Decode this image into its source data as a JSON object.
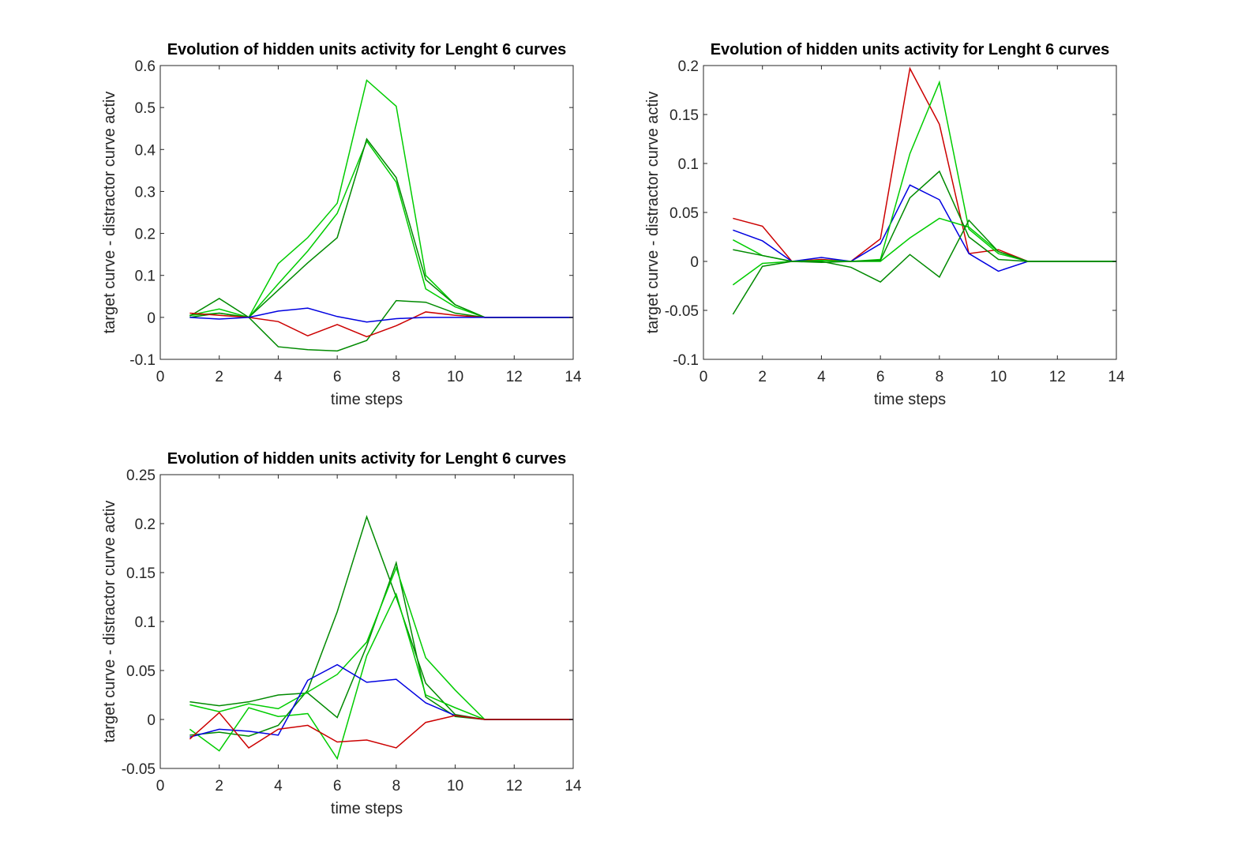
{
  "colors": {
    "red": "#cc0000",
    "blue": "#0000e0",
    "dark_green": "#008a00",
    "light_green": "#00cc00",
    "axis": "#262626"
  },
  "chart_data": [
    {
      "type": "line",
      "title": "Evolution of hidden units activity for Lenght 6 curves",
      "xlabel": "time steps",
      "ylabel": "target curve - distractor curve activ",
      "xlim": [
        0,
        14
      ],
      "ylim": [
        -0.1,
        0.6
      ],
      "xticks": [
        0,
        2,
        4,
        6,
        8,
        10,
        12,
        14
      ],
      "yticks": [
        -0.1,
        0,
        0.1,
        0.2,
        0.3,
        0.4,
        0.5,
        0.6
      ],
      "ytick_labels": [
        "-0.1",
        "0",
        "0.1",
        "0.2",
        "0.3",
        "0.4",
        "0.5",
        "0.6"
      ],
      "grid": false,
      "legend": "none",
      "x": [
        1,
        2,
        3,
        4,
        5,
        6,
        7,
        8,
        9,
        10,
        11,
        12,
        13,
        14
      ],
      "series": [
        {
          "color": "light_green",
          "values": [
            0.005,
            0.01,
            0,
            0.128,
            0.19,
            0.272,
            0.565,
            0.503,
            0.1,
            0.03,
            0,
            0,
            0,
            0
          ]
        },
        {
          "color": "light_green",
          "values": [
            0.005,
            0.02,
            0,
            0.08,
            0.158,
            0.248,
            0.42,
            0.322,
            0.068,
            0.025,
            0,
            0,
            0,
            0
          ]
        },
        {
          "color": "dark_green",
          "values": [
            0,
            0.01,
            0,
            0.065,
            0.13,
            0.19,
            0.425,
            0.333,
            0.09,
            0.03,
            0,
            0,
            0,
            0
          ]
        },
        {
          "color": "dark_green",
          "values": [
            0.003,
            0.045,
            0,
            -0.07,
            -0.077,
            -0.08,
            -0.055,
            0.04,
            0.036,
            0.01,
            0,
            0,
            0,
            0
          ]
        },
        {
          "color": "red",
          "values": [
            0.01,
            0.005,
            0,
            -0.01,
            -0.044,
            -0.017,
            -0.046,
            -0.02,
            0.013,
            0.005,
            0,
            0,
            0,
            0
          ]
        },
        {
          "color": "blue",
          "values": [
            0,
            -0.004,
            0,
            0.015,
            0.022,
            0.002,
            -0.011,
            -0.003,
            0,
            0,
            0,
            0,
            0,
            0
          ]
        }
      ]
    },
    {
      "type": "line",
      "title": "Evolution of hidden units activity for Lenght 6 curves",
      "xlabel": "time steps",
      "ylabel": "target curve - distractor curve activ",
      "xlim": [
        0,
        14
      ],
      "ylim": [
        -0.1,
        0.2
      ],
      "xticks": [
        0,
        2,
        4,
        6,
        8,
        10,
        12,
        14
      ],
      "yticks": [
        -0.1,
        -0.05,
        0,
        0.05,
        0.1,
        0.15,
        0.2
      ],
      "ytick_labels": [
        "-0.1",
        "-0.05",
        "0",
        "0.05",
        "0.1",
        "0.15",
        "0.2"
      ],
      "grid": false,
      "legend": "none",
      "x": [
        1,
        2,
        3,
        4,
        5,
        6,
        7,
        8,
        9,
        10,
        11,
        12,
        13,
        14
      ],
      "series": [
        {
          "color": "red",
          "values": [
            0.044,
            0.036,
            0,
            0.002,
            0,
            0.023,
            0.197,
            0.14,
            0.008,
            0.012,
            0,
            0,
            0,
            0
          ]
        },
        {
          "color": "blue",
          "values": [
            0.032,
            0.021,
            0,
            0.004,
            0,
            0.018,
            0.078,
            0.063,
            0.008,
            -0.01,
            0,
            0,
            0,
            0
          ]
        },
        {
          "color": "light_green",
          "values": [
            0.022,
            0.006,
            0,
            0.001,
            0,
            0.002,
            0.11,
            0.183,
            0.033,
            0.008,
            0,
            0,
            0,
            0
          ]
        },
        {
          "color": "light_green",
          "values": [
            -0.024,
            -0.002,
            0,
            0.001,
            0,
            0,
            0.024,
            0.044,
            0.035,
            0.01,
            0,
            0,
            0,
            0
          ]
        },
        {
          "color": "dark_green",
          "values": [
            0.012,
            0.006,
            0,
            -0.001,
            0,
            0.001,
            0.065,
            0.092,
            0.025,
            0.002,
            0,
            0,
            0,
            0
          ]
        },
        {
          "color": "dark_green",
          "values": [
            -0.054,
            -0.005,
            0,
            0,
            -0.006,
            -0.021,
            0.007,
            -0.016,
            0.042,
            0.01,
            0,
            0,
            0,
            0
          ]
        }
      ]
    },
    {
      "type": "line",
      "title": "Evolution of hidden units activity for Lenght 6 curves",
      "xlabel": "time steps",
      "ylabel": "target curve - distractor curve activ",
      "xlim": [
        0,
        14
      ],
      "ylim": [
        -0.05,
        0.25
      ],
      "xticks": [
        0,
        2,
        4,
        6,
        8,
        10,
        12,
        14
      ],
      "yticks": [
        -0.05,
        0,
        0.05,
        0.1,
        0.15,
        0.2,
        0.25
      ],
      "ytick_labels": [
        "-0.05",
        "0",
        "0.05",
        "0.1",
        "0.15",
        "0.2",
        "0.25"
      ],
      "grid": false,
      "legend": "none",
      "x": [
        1,
        2,
        3,
        4,
        5,
        6,
        7,
        8,
        9,
        10,
        11,
        12,
        13,
        14
      ],
      "series": [
        {
          "color": "dark_green",
          "values": [
            -0.016,
            -0.013,
            -0.017,
            -0.006,
            0.03,
            0.11,
            0.207,
            0.125,
            0.037,
            0.005,
            0,
            0,
            0,
            0
          ]
        },
        {
          "color": "dark_green",
          "values": [
            0.018,
            0.014,
            0.018,
            0.025,
            0.027,
            0.002,
            0.075,
            0.16,
            0.023,
            0.003,
            0,
            0,
            0,
            0
          ]
        },
        {
          "color": "light_green",
          "values": [
            0.015,
            0.008,
            0.016,
            0.011,
            0.028,
            0.046,
            0.079,
            0.155,
            0.063,
            0.03,
            0,
            0,
            0,
            0
          ]
        },
        {
          "color": "light_green",
          "values": [
            -0.01,
            -0.032,
            0.012,
            0.003,
            0.006,
            -0.04,
            0.065,
            0.128,
            0.025,
            0.012,
            0,
            0,
            0,
            0
          ]
        },
        {
          "color": "blue",
          "values": [
            -0.018,
            -0.01,
            -0.012,
            -0.016,
            0.04,
            0.056,
            0.038,
            0.041,
            0.017,
            0.004,
            0,
            0,
            0,
            0
          ]
        },
        {
          "color": "red",
          "values": [
            -0.02,
            0.007,
            -0.029,
            -0.01,
            -0.006,
            -0.023,
            -0.021,
            -0.029,
            -0.003,
            0.004,
            0,
            0,
            0,
            0
          ]
        }
      ]
    }
  ]
}
